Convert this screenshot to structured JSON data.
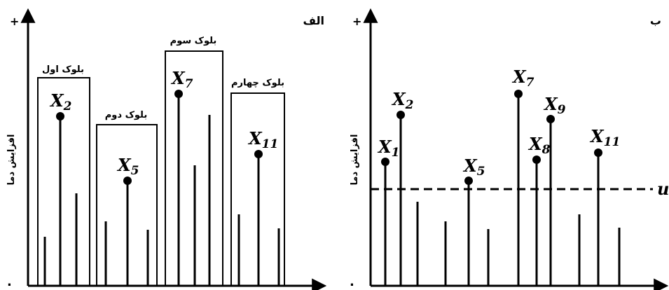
{
  "left_panel": {
    "panel_label": "الف",
    "y_axis_label": "افزایش دما",
    "plus_sign": "+",
    "origin_dot": ".",
    "blocks": [
      "بلوک اول",
      "بلوک دوم",
      "بلوک سوم",
      "بلوک چهارم"
    ],
    "marked_labels": [
      "X2",
      "X5",
      "X7",
      "X11"
    ]
  },
  "right_panel": {
    "panel_label": "ب",
    "y_axis_label": "افزایش دما",
    "plus_sign": "+",
    "origin_dot": ".",
    "threshold_label": "u",
    "marked_labels": [
      "X1",
      "X2",
      "X5",
      "X7",
      "X8",
      "X9",
      "X11"
    ]
  },
  "colors": {
    "ink": "#000000",
    "background": "#ffffff"
  }
}
